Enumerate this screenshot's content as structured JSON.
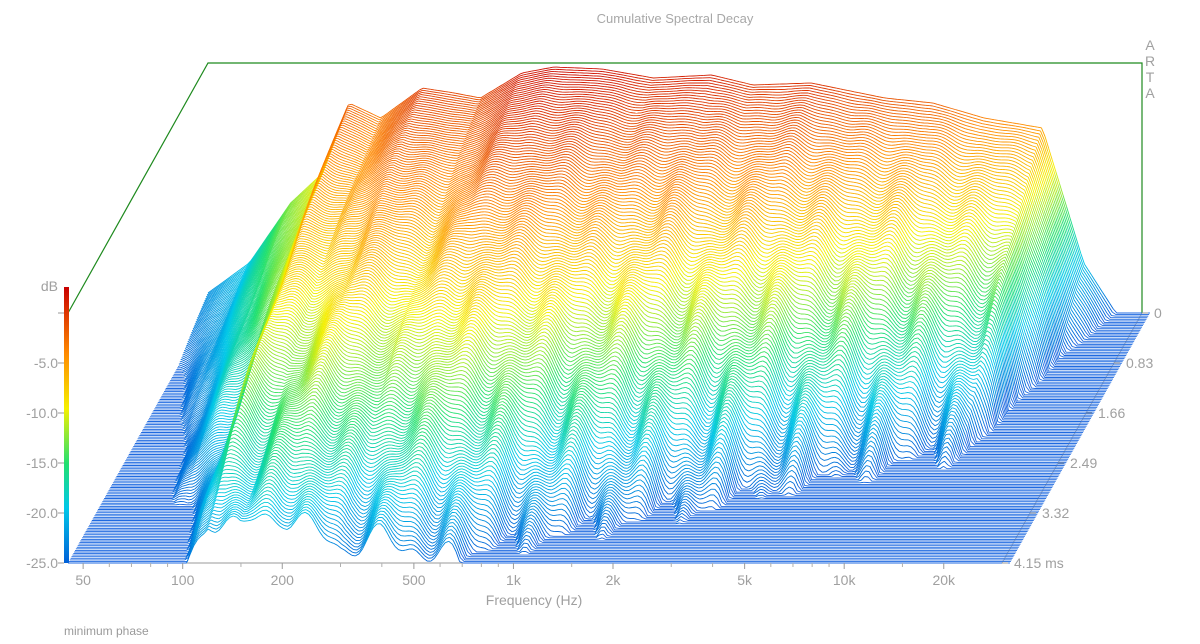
{
  "chart_data": {
    "type": "waterfall",
    "title": "Cumulative Spectral Decay",
    "xlabel": "Frequency (Hz)",
    "ylabel": "dB",
    "zlabel_unit": "ms",
    "watermark": "ARTA",
    "footnote": "minimum phase",
    "x_scale": "log",
    "xlim": [
      45,
      30000
    ],
    "ylim": [
      -25,
      0
    ],
    "zlim": [
      0,
      4.15
    ],
    "x_ticks": [
      {
        "value": 50,
        "label": "50"
      },
      {
        "value": 100,
        "label": "100"
      },
      {
        "value": 200,
        "label": "200"
      },
      {
        "value": 500,
        "label": "500"
      },
      {
        "value": 1000,
        "label": "1k"
      },
      {
        "value": 2000,
        "label": "2k"
      },
      {
        "value": 5000,
        "label": "5k"
      },
      {
        "value": 10000,
        "label": "10k"
      },
      {
        "value": 20000,
        "label": "20k"
      }
    ],
    "y_ticks": [
      {
        "value": 0,
        "label": "dB"
      },
      {
        "value": -5,
        "label": "-5.0"
      },
      {
        "value": -10,
        "label": "-10.0"
      },
      {
        "value": -15,
        "label": "-15.0"
      },
      {
        "value": -20,
        "label": "-20.0"
      },
      {
        "value": -25,
        "label": "-25.0"
      }
    ],
    "z_ticks": [
      {
        "value": 0,
        "label": "0"
      },
      {
        "value": 0.83,
        "label": "0.83"
      },
      {
        "value": 1.66,
        "label": "1.66"
      },
      {
        "value": 2.49,
        "label": "2.49"
      },
      {
        "value": 3.32,
        "label": "3.32"
      },
      {
        "value": 4.15,
        "label": "4.15 ms"
      }
    ],
    "initial_response": {
      "freq": [
        45,
        60,
        80,
        100,
        120,
        150,
        200,
        250,
        300,
        400,
        500,
        700,
        1000,
        1500,
        2000,
        3000,
        5000,
        7000,
        10000,
        15000,
        20000,
        25000,
        30000
      ],
      "db": [
        -23,
        -20,
        -14,
        -11,
        -4,
        -5.5,
        -2.5,
        -3,
        -3.5,
        -1,
        -0.4,
        -0.6,
        -1.5,
        -1.2,
        -2.2,
        -2,
        -3.5,
        -4,
        -5.5,
        -6.5,
        -20,
        -25,
        -25
      ]
    },
    "slices": 160,
    "colorscale": [
      {
        "db": 0,
        "color": "#c80000"
      },
      {
        "db": -6,
        "color": "#ff8a00"
      },
      {
        "db": -11,
        "color": "#f5f000"
      },
      {
        "db": -16,
        "color": "#22e070"
      },
      {
        "db": -20,
        "color": "#00c8e8"
      },
      {
        "db": -25,
        "color": "#0060d8"
      }
    ],
    "floor_color": "#1f6ae0",
    "frame_color": "#1e8a1e"
  }
}
